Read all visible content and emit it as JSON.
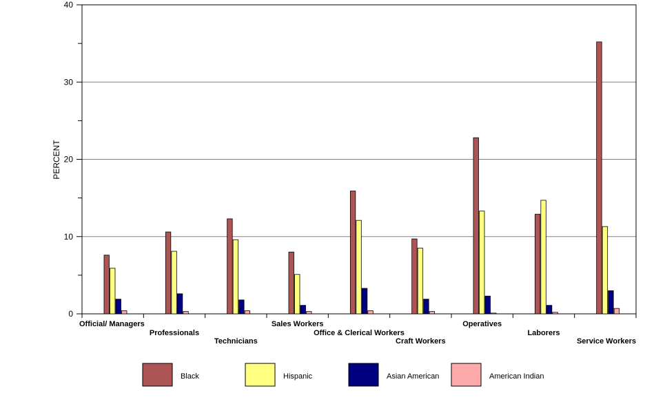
{
  "chart_data": {
    "type": "bar",
    "title": "",
    "xlabel": "",
    "ylabel": "PERCENT",
    "ylim": [
      0,
      40
    ],
    "yticks": [
      "0",
      "10",
      "20",
      "30",
      "40"
    ],
    "grid": true,
    "legend_position": "bottom",
    "categories": [
      "Official/ Managers",
      "Professionals",
      "Technicians",
      "Sales Workers",
      "Office & Clerical Workers",
      "Craft Workers",
      "Operatives",
      "Laborers",
      "Service Workers"
    ],
    "series": [
      {
        "name": "Black",
        "color": "#AD5555",
        "values": [
          7.6,
          10.6,
          12.3,
          8.0,
          15.9,
          9.7,
          22.8,
          12.9,
          35.2
        ]
      },
      {
        "name": "Hispanic",
        "color": "#FFFF80",
        "values": [
          5.9,
          8.1,
          9.6,
          5.1,
          12.1,
          8.5,
          13.3,
          14.7,
          11.3
        ]
      },
      {
        "name": "Asian American",
        "color": "#000080",
        "values": [
          1.9,
          2.6,
          1.8,
          1.1,
          3.3,
          1.9,
          2.3,
          1.1,
          3.0
        ]
      },
      {
        "name": "American Indian",
        "color": "#FFAAAA",
        "values": [
          0.4,
          0.3,
          0.4,
          0.3,
          0.4,
          0.3,
          0.1,
          0.2,
          0.7
        ]
      }
    ]
  }
}
